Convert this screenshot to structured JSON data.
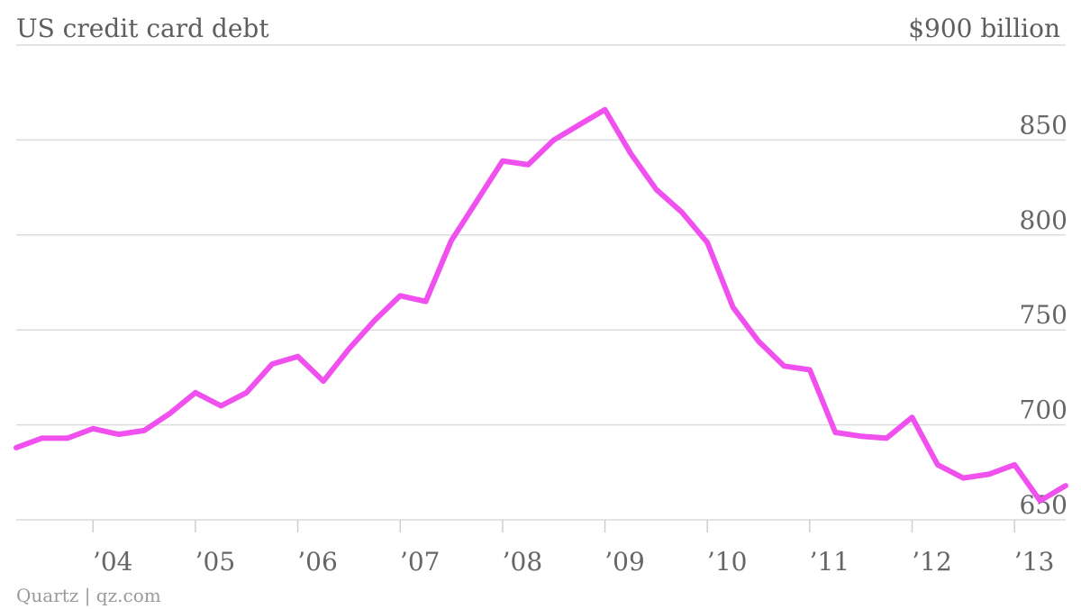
{
  "chart_data": {
    "type": "line",
    "title": "US credit card debt",
    "unit_label": "$900 billion",
    "source": "Quartz | qz.com",
    "ylim": [
      650,
      900
    ],
    "yticks": [
      "850",
      "800",
      "750",
      "700",
      "650"
    ],
    "xlim": [
      2003.25,
      2013.5
    ],
    "xticks": [
      {
        "x": 2004,
        "label": "’04"
      },
      {
        "x": 2005,
        "label": "’05"
      },
      {
        "x": 2006,
        "label": "’06"
      },
      {
        "x": 2007,
        "label": "’07"
      },
      {
        "x": 2008,
        "label": "’08"
      },
      {
        "x": 2009,
        "label": "’09"
      },
      {
        "x": 2010,
        "label": "’10"
      },
      {
        "x": 2011,
        "label": "’11"
      },
      {
        "x": 2012,
        "label": "’12"
      },
      {
        "x": 2013,
        "label": "’13"
      }
    ],
    "grid": true,
    "series": [
      {
        "color": "#f050ee",
        "x": [
          2003.25,
          2003.5,
          2003.75,
          2004.0,
          2004.25,
          2004.5,
          2004.75,
          2005.0,
          2005.25,
          2005.5,
          2005.75,
          2006.0,
          2006.25,
          2006.5,
          2006.75,
          2007.0,
          2007.25,
          2007.5,
          2007.75,
          2008.0,
          2008.25,
          2008.5,
          2008.75,
          2009.0,
          2009.25,
          2009.5,
          2009.75,
          2010.0,
          2010.25,
          2010.5,
          2010.75,
          2011.0,
          2011.25,
          2011.5,
          2011.75,
          2012.0,
          2012.25,
          2012.5,
          2012.75,
          2013.0,
          2013.25,
          2013.5
        ],
        "y": [
          688,
          693,
          693,
          698,
          695,
          697,
          706,
          717,
          710,
          717,
          732,
          736,
          723,
          740,
          755,
          768,
          765,
          797,
          818,
          839,
          837,
          850,
          858,
          866,
          843,
          824,
          812,
          796,
          762,
          744,
          731,
          729,
          696,
          694,
          693,
          704,
          679,
          672,
          674,
          679,
          660,
          668
        ]
      }
    ]
  }
}
